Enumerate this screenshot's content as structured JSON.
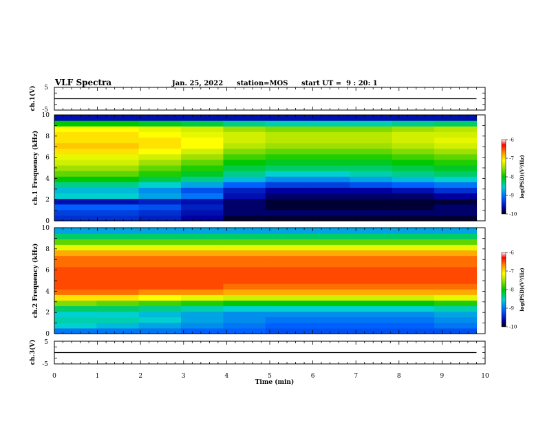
{
  "header": {
    "title": "VLF Spectra",
    "date": "Jan. 25, 2022",
    "station": "station=MOS",
    "start": "start UT =  9 : 20: 1"
  },
  "chart_data": [
    {
      "type": "line",
      "name": "ch1-waveform",
      "ylabel": "ch.1(V)",
      "ylim": [
        -5,
        5
      ],
      "yticks": [
        "5",
        "-5"
      ],
      "xlim": [
        0,
        10
      ],
      "x": [
        0,
        9.8
      ],
      "values": [
        0,
        0
      ]
    },
    {
      "type": "heatmap",
      "name": "ch1-spectrogram",
      "ylabel": "ch.1 Frequency (kHz)",
      "ylim": [
        0,
        10
      ],
      "yticks": [
        "0",
        "2",
        "4",
        "6",
        "8",
        "10"
      ],
      "xlim": [
        0,
        10
      ],
      "data_xmax": 9.8,
      "colorbar": {
        "label": "log(PSD)(V²/Hz)",
        "range": [
          -10,
          -6
        ],
        "ticks": [
          "-6",
          "-7",
          "-8",
          "-9",
          "-10"
        ]
      },
      "columns": [
        [
          -9.4,
          -9.3,
          -9.1,
          -9.6,
          -8.6,
          -8.7,
          -8.4,
          -8.0,
          -7.7,
          -7.5,
          -7.3,
          -7.2,
          -7.0,
          -6.9,
          -7.0,
          -7.0,
          -7.1,
          -8.0,
          -9.6
        ],
        [
          -9.4,
          -9.3,
          -9.1,
          -9.6,
          -8.6,
          -8.7,
          -8.4,
          -8.0,
          -7.7,
          -7.5,
          -7.3,
          -7.2,
          -7.0,
          -6.9,
          -7.0,
          -7.0,
          -7.1,
          -8.0,
          -9.6
        ],
        [
          -9.5,
          -9.4,
          -9.2,
          -9.5,
          -8.8,
          -8.9,
          -8.6,
          -8.2,
          -7.9,
          -7.7,
          -7.5,
          -7.3,
          -7.1,
          -7.0,
          -7.0,
          -7.1,
          -7.2,
          -8.1,
          -9.6
        ],
        [
          -9.7,
          -9.6,
          -9.5,
          -9.6,
          -9.0,
          -9.2,
          -8.8,
          -8.4,
          -8.1,
          -7.9,
          -7.7,
          -7.5,
          -7.3,
          -7.1,
          -7.1,
          -7.2,
          -7.3,
          -8.2,
          -9.6
        ],
        [
          -9.9,
          -9.8,
          -9.8,
          -9.8,
          -9.6,
          -9.5,
          -9.1,
          -8.7,
          -8.4,
          -8.2,
          -8.0,
          -7.8,
          -7.6,
          -7.4,
          -7.3,
          -7.3,
          -7.5,
          -8.4,
          -9.6
        ],
        [
          -9.9,
          -9.8,
          -9.9,
          -9.9,
          -9.8,
          -9.7,
          -9.3,
          -8.9,
          -8.6,
          -8.3,
          -8.1,
          -7.9,
          -7.7,
          -7.5,
          -7.4,
          -7.4,
          -7.6,
          -8.5,
          -9.6
        ],
        [
          -9.9,
          -9.8,
          -9.9,
          -9.9,
          -9.8,
          -9.7,
          -9.3,
          -8.9,
          -8.6,
          -8.3,
          -8.1,
          -7.9,
          -7.7,
          -7.5,
          -7.4,
          -7.4,
          -7.6,
          -8.5,
          -9.6
        ],
        [
          -9.9,
          -9.8,
          -9.9,
          -9.9,
          -9.8,
          -9.7,
          -9.2,
          -8.8,
          -8.5,
          -8.3,
          -8.1,
          -7.9,
          -7.7,
          -7.5,
          -7.4,
          -7.4,
          -7.6,
          -8.5,
          -9.6
        ],
        [
          -9.9,
          -9.8,
          -9.9,
          -9.9,
          -9.8,
          -9.6,
          -9.1,
          -8.7,
          -8.4,
          -8.2,
          -8.0,
          -7.8,
          -7.6,
          -7.4,
          -7.3,
          -7.3,
          -7.5,
          -8.4,
          -9.6
        ],
        [
          -9.9,
          -9.8,
          -9.8,
          -9.9,
          -9.7,
          -9.4,
          -9.0,
          -8.6,
          -8.3,
          -8.1,
          -7.9,
          -7.7,
          -7.5,
          -7.3,
          -7.2,
          -7.3,
          -7.4,
          -8.3,
          -9.6
        ]
      ]
    },
    {
      "type": "heatmap",
      "name": "ch2-spectrogram",
      "ylabel": "ch.2 Frequency (kHz)",
      "ylim": [
        0,
        10
      ],
      "yticks": [
        "0",
        "2",
        "4",
        "6",
        "8",
        "10"
      ],
      "xlim": [
        0,
        10
      ],
      "data_xmax": 9.8,
      "colorbar": {
        "label": "log(PSD)(V²/Hz)",
        "range": [
          -10,
          -6
        ],
        "ticks": [
          "-6",
          "-7",
          "-8",
          "-9",
          "-10"
        ]
      },
      "columns": [
        [
          -9.0,
          -8.6,
          -8.5,
          -8.6,
          -8.3,
          -7.6,
          -7.0,
          -6.6,
          -6.5,
          -6.5,
          -6.5,
          -6.5,
          -6.6,
          -6.6,
          -6.8,
          -7.2,
          -7.7,
          -8.3,
          -8.8
        ],
        [
          -9.0,
          -8.7,
          -8.5,
          -8.6,
          -8.3,
          -7.7,
          -7.0,
          -6.6,
          -6.5,
          -6.5,
          -6.5,
          -6.5,
          -6.6,
          -6.6,
          -6.8,
          -7.2,
          -7.7,
          -8.3,
          -8.8
        ],
        [
          -9.0,
          -8.8,
          -8.6,
          -8.7,
          -8.4,
          -7.8,
          -7.1,
          -6.7,
          -6.5,
          -6.5,
          -6.5,
          -6.5,
          -6.6,
          -6.6,
          -6.8,
          -7.2,
          -7.7,
          -8.3,
          -8.8
        ],
        [
          -9.1,
          -8.9,
          -8.8,
          -8.8,
          -8.5,
          -7.9,
          -7.2,
          -6.7,
          -6.5,
          -6.5,
          -6.5,
          -6.5,
          -6.6,
          -6.6,
          -6.8,
          -7.2,
          -7.7,
          -8.3,
          -8.8
        ],
        [
          -9.1,
          -9.0,
          -8.9,
          -8.9,
          -8.6,
          -8.0,
          -7.3,
          -6.8,
          -6.6,
          -6.5,
          -6.5,
          -6.5,
          -6.6,
          -6.6,
          -6.8,
          -7.2,
          -7.7,
          -8.3,
          -8.8
        ],
        [
          -9.2,
          -9.1,
          -9.0,
          -8.9,
          -8.6,
          -8.0,
          -7.3,
          -6.8,
          -6.6,
          -6.5,
          -6.5,
          -6.5,
          -6.6,
          -6.6,
          -6.8,
          -7.2,
          -7.7,
          -8.3,
          -8.8
        ],
        [
          -9.2,
          -9.1,
          -9.0,
          -8.9,
          -8.6,
          -8.0,
          -7.3,
          -6.8,
          -6.6,
          -6.5,
          -6.5,
          -6.5,
          -6.6,
          -6.6,
          -6.8,
          -7.2,
          -7.7,
          -8.3,
          -8.8
        ],
        [
          -9.2,
          -9.1,
          -9.0,
          -8.9,
          -8.6,
          -8.0,
          -7.3,
          -6.8,
          -6.6,
          -6.5,
          -6.5,
          -6.5,
          -6.6,
          -6.6,
          -6.8,
          -7.2,
          -7.7,
          -8.3,
          -8.8
        ],
        [
          -9.2,
          -9.1,
          -9.0,
          -8.9,
          -8.6,
          -8.0,
          -7.3,
          -6.8,
          -6.6,
          -6.5,
          -6.5,
          -6.5,
          -6.6,
          -6.6,
          -6.8,
          -7.2,
          -7.7,
          -8.3,
          -8.8
        ],
        [
          -9.2,
          -9.0,
          -8.9,
          -8.8,
          -8.5,
          -7.9,
          -7.2,
          -6.8,
          -6.6,
          -6.5,
          -6.5,
          -6.5,
          -6.6,
          -6.6,
          -6.8,
          -7.2,
          -7.7,
          -8.3,
          -8.8
        ]
      ]
    },
    {
      "type": "line",
      "name": "ch3-waveform",
      "ylabel": "ch.3(V)",
      "ylim": [
        -5,
        5
      ],
      "yticks": [
        "5",
        "-5"
      ],
      "xlim": [
        0,
        10
      ],
      "x": [
        0,
        9.8
      ],
      "values": [
        0,
        0
      ],
      "xlabel": "Time (min)",
      "xticks": [
        "0",
        "1",
        "2",
        "3",
        "4",
        "5",
        "6",
        "7",
        "8",
        "9",
        "10"
      ]
    }
  ]
}
